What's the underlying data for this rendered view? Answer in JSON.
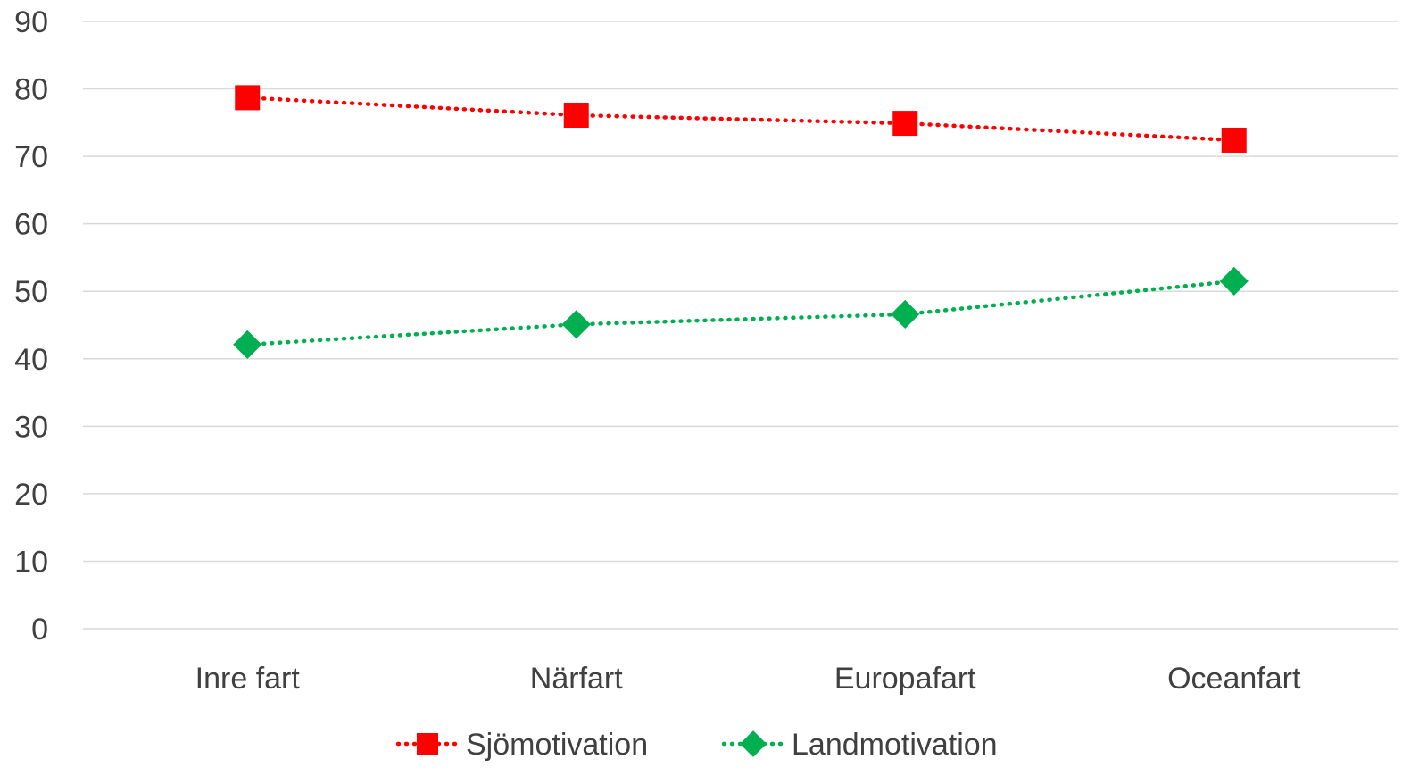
{
  "chart_data": {
    "type": "line",
    "title": "",
    "xlabel": "",
    "ylabel": "",
    "categories": [
      "Inre fart",
      "Närfart",
      "Europafart",
      "Oceanfart"
    ],
    "ylim": [
      0,
      90
    ],
    "yticks": [
      0,
      10,
      20,
      30,
      40,
      50,
      60,
      70,
      80,
      90
    ],
    "grid": true,
    "legend_position": "bottom",
    "series": [
      {
        "name": "Sjömotivation",
        "values": [
          78.7,
          76.1,
          74.9,
          72.4
        ],
        "color": "#ff0000",
        "marker": "square",
        "line_style": "dotted"
      },
      {
        "name": "Landmotivation",
        "values": [
          42.1,
          45.1,
          46.6,
          51.5
        ],
        "color": "#00b050",
        "marker": "diamond",
        "line_style": "dotted"
      }
    ]
  }
}
